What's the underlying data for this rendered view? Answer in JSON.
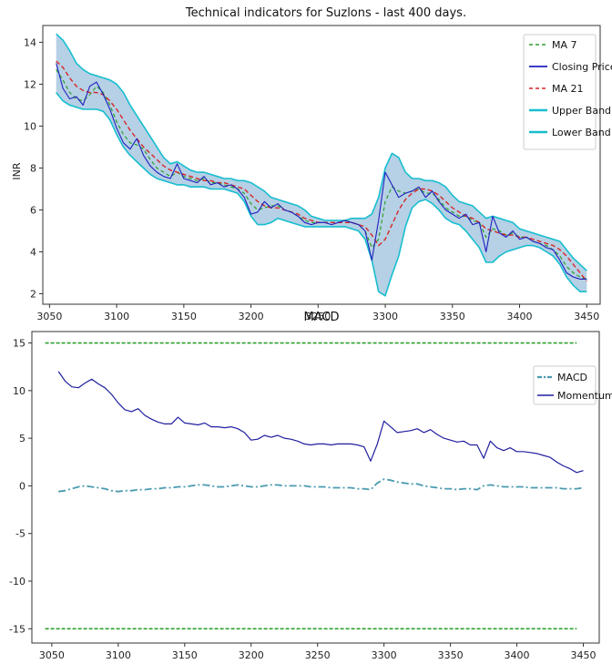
{
  "chart_data": [
    {
      "type": "line",
      "title": "Technical indicators for Suzlons - last 400 days.",
      "xlabel": "",
      "ylabel": "INR",
      "xlim": [
        3045,
        3460
      ],
      "ylim": [
        1.5,
        14.8
      ],
      "xticks": [
        3050,
        3100,
        3150,
        3200,
        3250,
        3300,
        3350,
        3400,
        3450
      ],
      "yticks": [
        2,
        4,
        6,
        8,
        10,
        12,
        14
      ],
      "legend_position": "top-right",
      "legend": [
        "MA 7",
        "Closing Price",
        "MA 21",
        "Upper Band",
        "Lower Band"
      ],
      "colors": {
        "ma7": "#2ca02c",
        "close": "#1f1fbf",
        "ma21": "#d62728",
        "band": "#17becf",
        "fill": "#a9c8e0"
      },
      "x": [
        3055,
        3060,
        3065,
        3070,
        3075,
        3080,
        3085,
        3090,
        3095,
        3100,
        3105,
        3110,
        3115,
        3120,
        3125,
        3130,
        3135,
        3140,
        3145,
        3150,
        3155,
        3160,
        3165,
        3170,
        3175,
        3180,
        3185,
        3190,
        3195,
        3200,
        3205,
        3210,
        3215,
        3220,
        3225,
        3230,
        3235,
        3240,
        3245,
        3250,
        3255,
        3260,
        3265,
        3270,
        3275,
        3280,
        3285,
        3290,
        3295,
        3300,
        3305,
        3310,
        3315,
        3320,
        3325,
        3330,
        3335,
        3340,
        3345,
        3350,
        3355,
        3360,
        3365,
        3370,
        3375,
        3380,
        3385,
        3390,
        3395,
        3400,
        3405,
        3410,
        3415,
        3420,
        3425,
        3430,
        3435,
        3440,
        3445,
        3450
      ],
      "series": [
        {
          "name": "Closing Price",
          "values": [
            13.0,
            11.8,
            11.3,
            11.4,
            11.0,
            11.9,
            12.1,
            11.5,
            10.8,
            9.9,
            9.2,
            8.9,
            9.4,
            8.6,
            8.1,
            7.8,
            7.6,
            7.5,
            8.2,
            7.5,
            7.4,
            7.3,
            7.6,
            7.2,
            7.3,
            7.1,
            7.2,
            7.0,
            6.6,
            5.8,
            5.9,
            6.4,
            6.1,
            6.3,
            6.0,
            5.9,
            5.7,
            5.4,
            5.3,
            5.4,
            5.4,
            5.3,
            5.4,
            5.5,
            5.4,
            5.3,
            5.0,
            3.6,
            5.5,
            7.8,
            7.2,
            6.6,
            6.8,
            6.9,
            7.1,
            6.6,
            6.9,
            6.4,
            6.0,
            5.8,
            5.6,
            5.8,
            5.3,
            5.4,
            4.0,
            5.7,
            4.9,
            4.7,
            5.0,
            4.6,
            4.7,
            4.5,
            4.4,
            4.2,
            4.1,
            3.6,
            3.0,
            2.8,
            2.7,
            2.7
          ]
        },
        {
          "name": "MA 7",
          "values": [
            12.7,
            12.2,
            11.6,
            11.3,
            11.2,
            11.5,
            11.9,
            11.6,
            11.0,
            10.2,
            9.6,
            9.2,
            9.1,
            8.9,
            8.4,
            8.0,
            7.8,
            7.6,
            7.8,
            7.6,
            7.5,
            7.4,
            7.5,
            7.3,
            7.3,
            7.2,
            7.1,
            7.0,
            6.8,
            6.3,
            6.0,
            6.1,
            6.2,
            6.2,
            6.0,
            5.9,
            5.7,
            5.5,
            5.4,
            5.4,
            5.4,
            5.4,
            5.4,
            5.5,
            5.4,
            5.3,
            5.0,
            4.2,
            4.6,
            6.4,
            7.1,
            6.9,
            6.8,
            6.9,
            7.0,
            6.8,
            6.8,
            6.5,
            6.1,
            5.9,
            5.7,
            5.7,
            5.5,
            5.4,
            4.7,
            5.1,
            5.0,
            4.8,
            4.9,
            4.7,
            4.7,
            4.5,
            4.4,
            4.3,
            4.1,
            3.8,
            3.3,
            3.0,
            2.8,
            2.7
          ]
        },
        {
          "name": "MA 21",
          "values": [
            13.1,
            12.8,
            12.3,
            11.9,
            11.7,
            11.6,
            11.6,
            11.5,
            11.2,
            10.8,
            10.3,
            9.8,
            9.4,
            9.0,
            8.7,
            8.4,
            8.1,
            7.9,
            7.8,
            7.7,
            7.6,
            7.5,
            7.4,
            7.4,
            7.3,
            7.3,
            7.2,
            7.1,
            7.0,
            6.7,
            6.4,
            6.2,
            6.1,
            6.1,
            6.0,
            5.9,
            5.8,
            5.6,
            5.5,
            5.4,
            5.4,
            5.4,
            5.4,
            5.4,
            5.4,
            5.3,
            5.2,
            4.8,
            4.3,
            4.6,
            5.3,
            6.0,
            6.5,
            6.8,
            7.0,
            7.0,
            6.9,
            6.7,
            6.4,
            6.1,
            5.9,
            5.7,
            5.6,
            5.4,
            5.1,
            5.0,
            4.9,
            4.8,
            4.8,
            4.7,
            4.7,
            4.6,
            4.5,
            4.4,
            4.3,
            4.1,
            3.8,
            3.4,
            3.0,
            2.6
          ]
        },
        {
          "name": "Upper Band",
          "values": [
            14.4,
            14.1,
            13.6,
            13.0,
            12.7,
            12.5,
            12.4,
            12.3,
            12.2,
            12.0,
            11.6,
            11.0,
            10.5,
            10.0,
            9.5,
            9.0,
            8.5,
            8.2,
            8.3,
            8.1,
            7.9,
            7.8,
            7.8,
            7.7,
            7.6,
            7.5,
            7.5,
            7.4,
            7.4,
            7.3,
            7.1,
            6.9,
            6.6,
            6.5,
            6.4,
            6.3,
            6.2,
            6.0,
            5.7,
            5.6,
            5.5,
            5.5,
            5.5,
            5.5,
            5.6,
            5.6,
            5.6,
            5.8,
            6.6,
            8.0,
            8.7,
            8.5,
            7.8,
            7.5,
            7.5,
            7.4,
            7.4,
            7.3,
            7.1,
            6.7,
            6.4,
            6.3,
            6.2,
            5.9,
            5.6,
            5.7,
            5.6,
            5.5,
            5.4,
            5.1,
            5.0,
            4.9,
            4.8,
            4.7,
            4.6,
            4.5,
            4.1,
            3.7,
            3.4,
            3.1
          ]
        },
        {
          "name": "Lower Band",
          "values": [
            11.6,
            11.2,
            11.0,
            10.9,
            10.8,
            10.8,
            10.8,
            10.7,
            10.3,
            9.6,
            9.0,
            8.6,
            8.3,
            8.0,
            7.7,
            7.5,
            7.4,
            7.3,
            7.2,
            7.2,
            7.1,
            7.1,
            7.1,
            7.0,
            7.0,
            7.0,
            6.9,
            6.8,
            6.4,
            5.7,
            5.3,
            5.3,
            5.4,
            5.6,
            5.5,
            5.4,
            5.3,
            5.2,
            5.2,
            5.2,
            5.2,
            5.2,
            5.2,
            5.2,
            5.1,
            5.0,
            4.6,
            3.6,
            2.1,
            1.9,
            2.9,
            3.8,
            5.2,
            6.1,
            6.4,
            6.5,
            6.3,
            6.0,
            5.6,
            5.4,
            5.3,
            5.0,
            4.6,
            4.2,
            3.5,
            3.5,
            3.8,
            4.0,
            4.1,
            4.2,
            4.3,
            4.3,
            4.2,
            4.0,
            3.8,
            3.4,
            2.8,
            2.4,
            2.1,
            2.1
          ]
        }
      ]
    },
    {
      "type": "line",
      "title": "MACD",
      "xlabel": "",
      "ylabel": "",
      "xlim": [
        3035,
        3462
      ],
      "ylim": [
        -16.5,
        16.2
      ],
      "xticks": [
        3050,
        3100,
        3150,
        3200,
        3250,
        3300,
        3350,
        3400,
        3450
      ],
      "yticks": [
        -15,
        -10,
        -5,
        0,
        5,
        10,
        15
      ],
      "legend_position": "top-right",
      "legend": [
        "MACD",
        "Momentum"
      ],
      "colors": {
        "macd": "#4a9bb0",
        "momentum": "#1f1f9f",
        "ref": "#2ca02c"
      },
      "reference_lines": [
        {
          "y": 15,
          "x_range": [
            3045,
            3445
          ]
        },
        {
          "y": -15,
          "x_range": [
            3045,
            3445
          ]
        }
      ],
      "x": [
        3055,
        3060,
        3065,
        3070,
        3075,
        3080,
        3085,
        3090,
        3095,
        3100,
        3105,
        3110,
        3115,
        3120,
        3125,
        3130,
        3135,
        3140,
        3145,
        3150,
        3155,
        3160,
        3165,
        3170,
        3175,
        3180,
        3185,
        3190,
        3195,
        3200,
        3205,
        3210,
        3215,
        3220,
        3225,
        3230,
        3235,
        3240,
        3245,
        3250,
        3255,
        3260,
        3265,
        3270,
        3275,
        3280,
        3285,
        3290,
        3295,
        3300,
        3305,
        3310,
        3315,
        3320,
        3325,
        3330,
        3335,
        3340,
        3345,
        3350,
        3355,
        3360,
        3365,
        3370,
        3375,
        3380,
        3385,
        3390,
        3395,
        3400,
        3405,
        3410,
        3415,
        3420,
        3425,
        3430,
        3435,
        3440,
        3445,
        3450
      ],
      "series": [
        {
          "name": "MACD",
          "values": [
            -0.6,
            -0.5,
            -0.3,
            -0.1,
            0.0,
            -0.1,
            -0.2,
            -0.3,
            -0.5,
            -0.6,
            -0.5,
            -0.5,
            -0.4,
            -0.4,
            -0.3,
            -0.3,
            -0.2,
            -0.2,
            -0.1,
            -0.1,
            0.0,
            0.1,
            0.1,
            0.0,
            -0.1,
            -0.1,
            0.0,
            0.1,
            0.0,
            -0.1,
            -0.1,
            0.0,
            0.1,
            0.1,
            0.0,
            0.0,
            0.0,
            0.0,
            -0.1,
            -0.1,
            -0.1,
            -0.2,
            -0.2,
            -0.2,
            -0.2,
            -0.3,
            -0.3,
            -0.4,
            0.3,
            0.7,
            0.6,
            0.4,
            0.3,
            0.2,
            0.2,
            0.0,
            -0.1,
            -0.2,
            -0.3,
            -0.3,
            -0.4,
            -0.3,
            -0.3,
            -0.4,
            0.0,
            0.1,
            0.0,
            -0.1,
            -0.1,
            -0.1,
            -0.1,
            -0.2,
            -0.2,
            -0.2,
            -0.2,
            -0.2,
            -0.3,
            -0.3,
            -0.3,
            -0.2
          ]
        },
        {
          "name": "Momentum",
          "values": [
            12.0,
            11.0,
            10.4,
            10.3,
            10.8,
            11.2,
            10.7,
            10.3,
            9.6,
            8.7,
            8.0,
            7.8,
            8.1,
            7.4,
            7.0,
            6.7,
            6.5,
            6.5,
            7.2,
            6.6,
            6.5,
            6.4,
            6.6,
            6.2,
            6.2,
            6.1,
            6.2,
            6.0,
            5.6,
            4.8,
            4.9,
            5.3,
            5.1,
            5.3,
            5.0,
            4.9,
            4.7,
            4.4,
            4.3,
            4.4,
            4.4,
            4.3,
            4.4,
            4.4,
            4.4,
            4.3,
            4.1,
            2.6,
            4.4,
            6.8,
            6.2,
            5.6,
            5.7,
            5.8,
            6.0,
            5.6,
            5.9,
            5.4,
            5.0,
            4.8,
            4.6,
            4.7,
            4.3,
            4.3,
            2.9,
            4.7,
            4.0,
            3.7,
            4.0,
            3.6,
            3.6,
            3.5,
            3.4,
            3.2,
            3.0,
            2.5,
            2.1,
            1.8,
            1.4,
            1.6
          ]
        }
      ]
    }
  ]
}
